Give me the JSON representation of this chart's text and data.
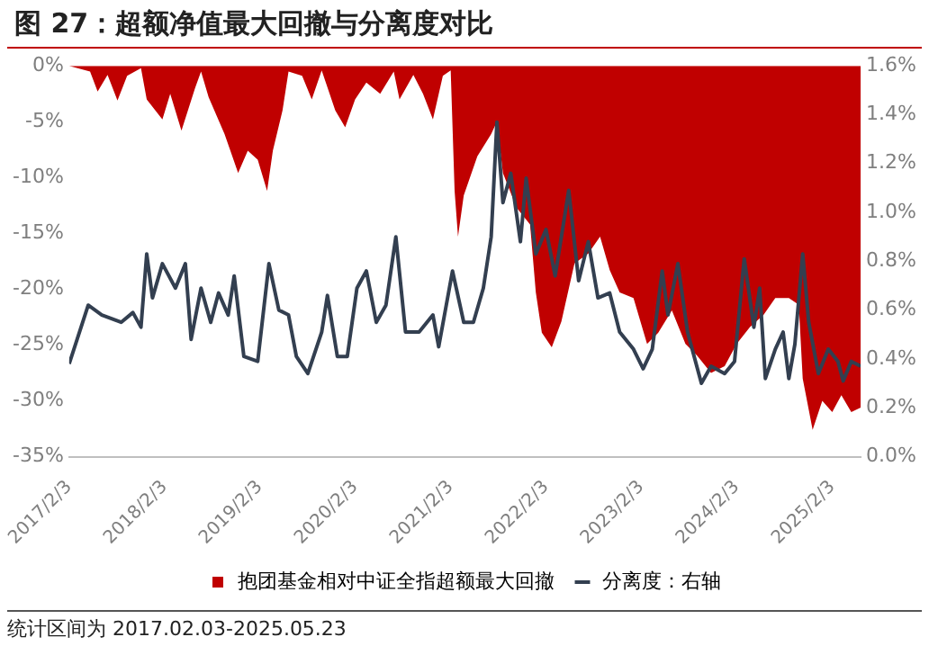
{
  "chart_data": {
    "type": "area",
    "title": "图 27：超额净值最大回撤与分离度对比",
    "xlim": [
      "2017-02-03",
      "2025-05-23"
    ],
    "xticks": [
      {
        "value": "2017-02-03",
        "label": "2017/2/3"
      },
      {
        "value": "2018-02-03",
        "label": "2018/2/3"
      },
      {
        "value": "2019-02-03",
        "label": "2019/2/3"
      },
      {
        "value": "2020-02-03",
        "label": "2020/2/3"
      },
      {
        "value": "2021-02-03",
        "label": "2021/2/3"
      },
      {
        "value": "2022-02-03",
        "label": "2022/2/3"
      },
      {
        "value": "2023-02-03",
        "label": "2023/2/3"
      },
      {
        "value": "2024-02-03",
        "label": "2024/2/3"
      },
      {
        "value": "2025-02-03",
        "label": "2025/2/3"
      }
    ],
    "ylim": [
      -35,
      0
    ],
    "yticks": [
      {
        "value": -35,
        "label": "-35%"
      },
      {
        "value": -30,
        "label": "-30%"
      },
      {
        "value": -25,
        "label": "-25%"
      },
      {
        "value": -20,
        "label": "-20%"
      },
      {
        "value": -15,
        "label": "-15%"
      },
      {
        "value": -10,
        "label": "-10%"
      },
      {
        "value": -5,
        "label": "-5%"
      },
      {
        "value": 0,
        "label": "0%"
      }
    ],
    "y2lim": [
      0,
      1.6
    ],
    "y2ticks": [
      {
        "value": 0,
        "label": "0.0%"
      },
      {
        "value": 0.2,
        "label": "0.2%"
      },
      {
        "value": 0.4,
        "label": "0.4%"
      },
      {
        "value": 0.6,
        "label": "0.6%"
      },
      {
        "value": 0.8,
        "label": "0.8%"
      },
      {
        "value": 1.0,
        "label": "1.0%"
      },
      {
        "value": 1.2,
        "label": "1.2%"
      },
      {
        "value": 1.4,
        "label": "1.4%"
      },
      {
        "value": 1.6,
        "label": "1.6%"
      }
    ],
    "legend": "bottom",
    "grid": false,
    "series": [
      {
        "name": "抱团基金相对中证全指超额最大回撤",
        "type": "area",
        "color": "#c00000",
        "x": [
          "2017-02-03",
          "2017-04-24",
          "2017-05-23",
          "2017-06-30",
          "2017-08-07",
          "2017-09-13",
          "2017-11-05",
          "2017-11-27",
          "2018-01-26",
          "2018-02-25",
          "2018-04-09",
          "2018-05-31",
          "2018-06-23",
          "2018-07-22",
          "2018-09-21",
          "2018-11-12",
          "2018-12-19",
          "2019-01-26",
          "2019-03-03",
          "2019-03-25",
          "2019-05-01",
          "2019-05-24",
          "2019-07-15",
          "2019-08-21",
          "2019-09-28",
          "2019-11-19",
          "2019-12-27",
          "2020-02-03",
          "2020-03-17",
          "2020-05-09",
          "2020-06-30",
          "2020-07-22",
          "2020-09-13",
          "2020-10-20",
          "2020-11-27",
          "2021-01-04",
          "2021-02-03",
          "2021-02-18",
          "2021-03-03",
          "2021-03-25",
          "2021-05-16",
          "2021-07-08",
          "2021-07-30",
          "2021-08-22",
          "2021-10-13",
          "2021-12-04",
          "2021-12-26",
          "2022-01-18",
          "2022-02-25",
          "2022-04-03",
          "2022-05-23",
          "2022-07-15",
          "2022-08-29",
          "2022-10-05",
          "2022-11-12",
          "2023-01-04",
          "2023-02-25",
          "2023-04-09",
          "2023-05-31",
          "2023-07-22",
          "2023-09-06",
          "2023-10-28",
          "2023-12-19",
          "2024-02-03",
          "2024-03-25",
          "2024-05-16",
          "2024-06-30",
          "2024-08-21",
          "2024-09-28",
          "2024-10-13",
          "2024-11-20",
          "2024-12-27",
          "2025-02-03",
          "2025-03-10",
          "2025-04-17",
          "2025-05-23"
        ],
        "values": [
          0,
          -0.5,
          -2.3,
          -0.8,
          -3.1,
          -0.9,
          -0.2,
          -3,
          -4.8,
          -2.5,
          -5.8,
          -2,
          -0.5,
          -2.8,
          -6.1,
          -9.6,
          -7.6,
          -8.4,
          -11.2,
          -7.6,
          -4,
          -0.5,
          -0.9,
          -3,
          -0.4,
          -4,
          -5.5,
          -3,
          -1.5,
          -2.5,
          -0.5,
          -3,
          -0.8,
          -2.5,
          -4.8,
          -0.9,
          -0.4,
          -11.2,
          -15.3,
          -11.6,
          -8.1,
          -6.1,
          -5,
          -9.6,
          -12.7,
          -14.2,
          -20.3,
          -23.9,
          -25.2,
          -22.9,
          -17.7,
          -16.8,
          -15.3,
          -18.3,
          -20.3,
          -20.8,
          -24.9,
          -23.9,
          -21.9,
          -24.9,
          -26,
          -27.5,
          -26.9,
          -24.9,
          -23.4,
          -22.3,
          -20.8,
          -20.8,
          -21.4,
          -28,
          -32.6,
          -30,
          -31,
          -29.5,
          -31,
          -30.6
        ]
      },
      {
        "name": "分离度：右轴",
        "type": "line",
        "axis": "y2",
        "color": "#333f50",
        "x": [
          "2017-02-03",
          "2017-04-17",
          "2017-06-08",
          "2017-08-21",
          "2017-10-05",
          "2017-11-05",
          "2017-11-27",
          "2017-12-19",
          "2018-01-26",
          "2018-03-17",
          "2018-04-24",
          "2018-05-16",
          "2018-06-23",
          "2018-07-30",
          "2018-08-29",
          "2018-10-05",
          "2018-10-28",
          "2018-12-04",
          "2019-01-26",
          "2019-03-10",
          "2019-04-17",
          "2019-05-24",
          "2019-06-23",
          "2019-08-06",
          "2019-09-28",
          "2019-10-20",
          "2019-11-27",
          "2020-01-04",
          "2020-02-10",
          "2020-03-17",
          "2020-04-24",
          "2020-05-31",
          "2020-07-08",
          "2020-08-14",
          "2020-10-05",
          "2020-11-27",
          "2020-12-19",
          "2021-02-10",
          "2021-03-25",
          "2021-05-01",
          "2021-06-08",
          "2021-07-08",
          "2021-07-30",
          "2021-08-22",
          "2021-09-21",
          "2021-10-28",
          "2021-11-19",
          "2021-12-26",
          "2022-02-03",
          "2022-03-10",
          "2022-05-01",
          "2022-06-08",
          "2022-07-15",
          "2022-08-21",
          "2022-10-05",
          "2022-11-12",
          "2023-01-04",
          "2023-02-10",
          "2023-03-17",
          "2023-04-24",
          "2023-05-16",
          "2023-06-23",
          "2023-07-30",
          "2023-09-21",
          "2023-10-28",
          "2023-12-19",
          "2024-01-26",
          "2024-03-03",
          "2024-04-09",
          "2024-05-01",
          "2024-05-23",
          "2024-06-30",
          "2024-07-30",
          "2024-08-21",
          "2024-09-13",
          "2024-10-13",
          "2024-11-05",
          "2024-12-12",
          "2025-01-19",
          "2025-02-25",
          "2025-03-17",
          "2025-04-17",
          "2025-05-23"
        ],
        "values": [
          0.38,
          0.62,
          0.58,
          0.55,
          0.59,
          0.53,
          0.83,
          0.65,
          0.79,
          0.69,
          0.79,
          0.48,
          0.69,
          0.55,
          0.67,
          0.58,
          0.74,
          0.41,
          0.39,
          0.79,
          0.6,
          0.58,
          0.41,
          0.34,
          0.51,
          0.66,
          0.41,
          0.41,
          0.69,
          0.76,
          0.55,
          0.62,
          0.9,
          0.51,
          0.51,
          0.58,
          0.45,
          0.76,
          0.55,
          0.55,
          0.69,
          0.9,
          1.37,
          1.04,
          1.16,
          0.88,
          1.14,
          0.83,
          0.93,
          0.74,
          1.09,
          0.72,
          0.88,
          0.65,
          0.67,
          0.51,
          0.44,
          0.36,
          0.44,
          0.76,
          0.58,
          0.79,
          0.51,
          0.3,
          0.37,
          0.34,
          0.39,
          0.81,
          0.53,
          0.69,
          0.32,
          0.44,
          0.51,
          0.32,
          0.46,
          0.83,
          0.55,
          0.34,
          0.44,
          0.39,
          0.31,
          0.39,
          0.37
        ]
      }
    ],
    "annotations": [
      "统计区间为 2017.02.03-2025.05.23"
    ]
  }
}
